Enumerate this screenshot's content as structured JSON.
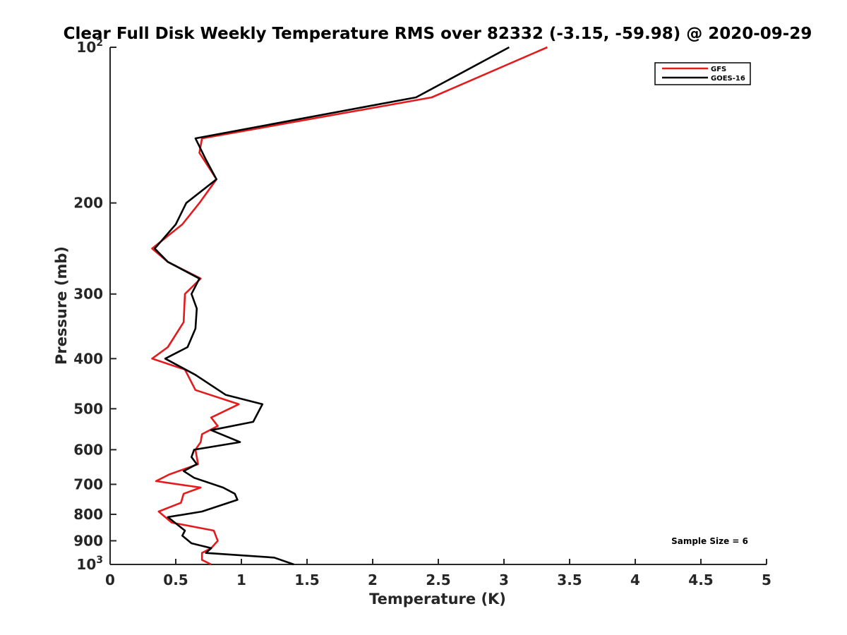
{
  "chart_data": {
    "type": "line",
    "title": "Clear Full Disk Weekly Temperature RMS over 82332 (-3.15, -59.98) @ 2020-09-29",
    "xlabel": "Temperature (K)",
    "ylabel": "Pressure (mb)",
    "xlim": [
      0,
      5
    ],
    "ylim": [
      100,
      1000
    ],
    "y_scale": "log",
    "y_reversed": true,
    "grid": false,
    "legend_position": "top-right",
    "x_ticks": [
      {
        "value": 0,
        "label": "0"
      },
      {
        "value": 0.5,
        "label": "0.5"
      },
      {
        "value": 1,
        "label": "1"
      },
      {
        "value": 1.5,
        "label": "1.5"
      },
      {
        "value": 2,
        "label": "2"
      },
      {
        "value": 2.5,
        "label": "2.5"
      },
      {
        "value": 3,
        "label": "3"
      },
      {
        "value": 3.5,
        "label": "3.5"
      },
      {
        "value": 4,
        "label": "4"
      },
      {
        "value": 4.5,
        "label": "4.5"
      },
      {
        "value": 5,
        "label": "5"
      }
    ],
    "y_ticks": [
      {
        "value": 100,
        "base": "10",
        "exp": "2"
      },
      {
        "value": 200,
        "label": "200"
      },
      {
        "value": 300,
        "label": "300"
      },
      {
        "value": 400,
        "label": "400"
      },
      {
        "value": 500,
        "label": "500"
      },
      {
        "value": 600,
        "label": "600"
      },
      {
        "value": 700,
        "label": "700"
      },
      {
        "value": 800,
        "label": "800"
      },
      {
        "value": 900,
        "label": "900"
      },
      {
        "value": 1000,
        "base": "10",
        "exp": "3"
      }
    ],
    "series": [
      {
        "name": "GFS",
        "color": "#e41a1c",
        "points": [
          [
            3.33,
            100
          ],
          [
            2.45,
            125
          ],
          [
            0.7,
            150
          ],
          [
            0.68,
            160
          ],
          [
            0.81,
            180
          ],
          [
            0.68,
            200
          ],
          [
            0.55,
            220
          ],
          [
            0.32,
            245
          ],
          [
            0.44,
            260
          ],
          [
            0.69,
            280
          ],
          [
            0.57,
            300
          ],
          [
            0.56,
            340
          ],
          [
            0.44,
            380
          ],
          [
            0.32,
            400
          ],
          [
            0.57,
            420
          ],
          [
            0.65,
            460
          ],
          [
            0.98,
            490
          ],
          [
            0.77,
            520
          ],
          [
            0.82,
            540
          ],
          [
            0.7,
            560
          ],
          [
            0.69,
            580
          ],
          [
            0.65,
            600
          ],
          [
            0.67,
            640
          ],
          [
            0.45,
            670
          ],
          [
            0.35,
            690
          ],
          [
            0.69,
            710
          ],
          [
            0.56,
            730
          ],
          [
            0.54,
            760
          ],
          [
            0.37,
            790
          ],
          [
            0.47,
            830
          ],
          [
            0.79,
            860
          ],
          [
            0.82,
            900
          ],
          [
            0.77,
            930
          ],
          [
            0.7,
            950
          ],
          [
            0.7,
            980
          ],
          [
            0.77,
            1000
          ]
        ]
      },
      {
        "name": "GOES-16",
        "color": "#000000",
        "points": [
          [
            3.04,
            100
          ],
          [
            2.33,
            125
          ],
          [
            0.65,
            150
          ],
          [
            0.73,
            165
          ],
          [
            0.81,
            180
          ],
          [
            0.58,
            200
          ],
          [
            0.5,
            220
          ],
          [
            0.34,
            245
          ],
          [
            0.44,
            260
          ],
          [
            0.68,
            280
          ],
          [
            0.62,
            300
          ],
          [
            0.66,
            320
          ],
          [
            0.65,
            350
          ],
          [
            0.59,
            380
          ],
          [
            0.42,
            400
          ],
          [
            0.65,
            430
          ],
          [
            0.88,
            470
          ],
          [
            1.16,
            490
          ],
          [
            1.09,
            530
          ],
          [
            0.77,
            550
          ],
          [
            0.99,
            580
          ],
          [
            0.64,
            600
          ],
          [
            0.62,
            620
          ],
          [
            0.66,
            640
          ],
          [
            0.56,
            660
          ],
          [
            0.64,
            680
          ],
          [
            0.86,
            710
          ],
          [
            0.95,
            730
          ],
          [
            0.97,
            750
          ],
          [
            0.7,
            790
          ],
          [
            0.44,
            810
          ],
          [
            0.57,
            860
          ],
          [
            0.55,
            880
          ],
          [
            0.62,
            910
          ],
          [
            0.77,
            930
          ],
          [
            0.73,
            950
          ],
          [
            1.25,
            970
          ],
          [
            1.4,
            1000
          ]
        ]
      }
    ],
    "annotation": "Sample Size = 6"
  }
}
